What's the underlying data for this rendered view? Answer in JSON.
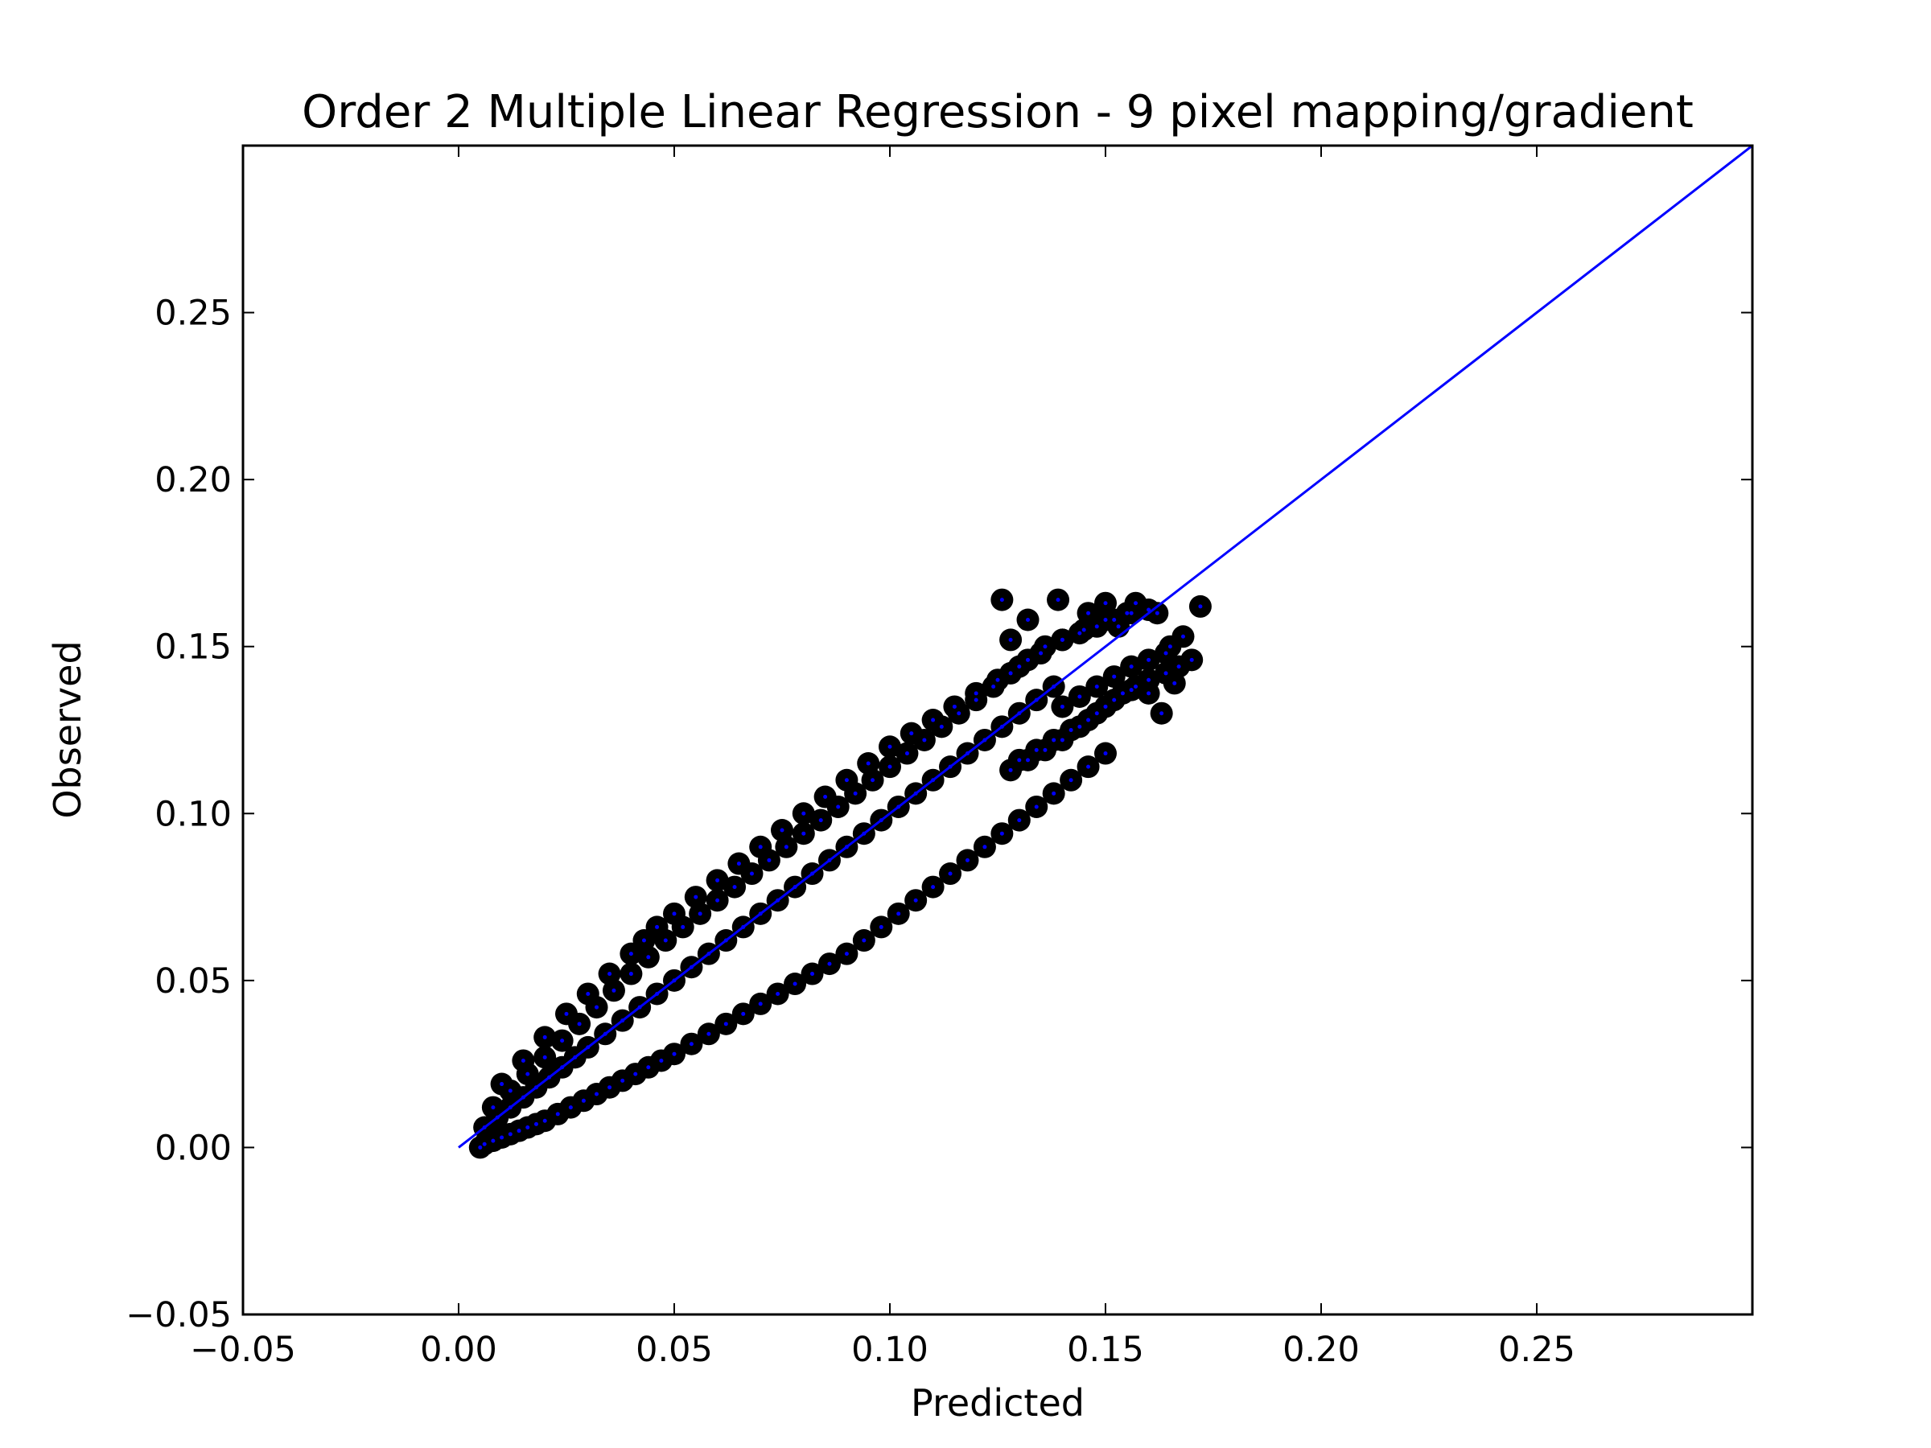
{
  "chart_data": {
    "type": "scatter",
    "title": "Order 2 Multiple Linear Regression - 9 pixel mapping/gradient",
    "xlabel": "Predicted",
    "ylabel": "Observed",
    "xlim": [
      -0.05,
      0.3
    ],
    "ylim": [
      -0.05,
      0.3
    ],
    "xticks": [
      -0.05,
      0.0,
      0.05,
      0.1,
      0.15,
      0.2,
      0.25
    ],
    "yticks": [
      -0.05,
      0.0,
      0.05,
      0.1,
      0.15,
      0.2,
      0.25
    ],
    "xtick_labels": [
      "−0.05",
      "0.00",
      "0.05",
      "0.10",
      "0.15",
      "0.20",
      "0.25"
    ],
    "ytick_labels": [
      "−0.05",
      "0.00",
      "0.05",
      "0.10",
      "0.15",
      "0.20",
      "0.25"
    ],
    "grid": false,
    "reference_line": {
      "x": [
        0,
        0.3
      ],
      "y": [
        0,
        0.3
      ],
      "color": "#0000ff"
    },
    "marker_color": "#000000",
    "inner_marker_color": "#0000ff",
    "series": [
      {
        "x": [
          0.005,
          0.006,
          0.008,
          0.01,
          0.012,
          0.014,
          0.016,
          0.018,
          0.02,
          0.023,
          0.026,
          0.029,
          0.032,
          0.035,
          0.038,
          0.041,
          0.044,
          0.047,
          0.05,
          0.054,
          0.058,
          0.062,
          0.066,
          0.07,
          0.074,
          0.078,
          0.082,
          0.086,
          0.09,
          0.094,
          0.098,
          0.102,
          0.106,
          0.11,
          0.114,
          0.118,
          0.122,
          0.126,
          0.13,
          0.134,
          0.138,
          0.142,
          0.146,
          0.15,
          0.006,
          0.009,
          0.012,
          0.015,
          0.018,
          0.021,
          0.024,
          0.027,
          0.03,
          0.034,
          0.038,
          0.042,
          0.046,
          0.05,
          0.054,
          0.058,
          0.062,
          0.066,
          0.07,
          0.074,
          0.078,
          0.082,
          0.086,
          0.09,
          0.094,
          0.098,
          0.102,
          0.106,
          0.11,
          0.114,
          0.118,
          0.122,
          0.126,
          0.13,
          0.134,
          0.138,
          0.008,
          0.012,
          0.016,
          0.02,
          0.024,
          0.028,
          0.032,
          0.036,
          0.04,
          0.044,
          0.048,
          0.052,
          0.056,
          0.06,
          0.064,
          0.068,
          0.072,
          0.076,
          0.08,
          0.084,
          0.088,
          0.092,
          0.096,
          0.1,
          0.104,
          0.108,
          0.112,
          0.116,
          0.12,
          0.124,
          0.128,
          0.132,
          0.136,
          0.14,
          0.144,
          0.148,
          0.152,
          0.156,
          0.16,
          0.01,
          0.015,
          0.02,
          0.025,
          0.03,
          0.035,
          0.04,
          0.043,
          0.046,
          0.05,
          0.055,
          0.06,
          0.065,
          0.07,
          0.075,
          0.08,
          0.085,
          0.09,
          0.095,
          0.1,
          0.105,
          0.11,
          0.115,
          0.12,
          0.125,
          0.13,
          0.135,
          0.14,
          0.145,
          0.15,
          0.155,
          0.126,
          0.128,
          0.132,
          0.139,
          0.146,
          0.15,
          0.153,
          0.157,
          0.162,
          0.165,
          0.168,
          0.17,
          0.172,
          0.166,
          0.163,
          0.16,
          0.156,
          0.152,
          0.148,
          0.144,
          0.14,
          0.136,
          0.132,
          0.128,
          0.167,
          0.164,
          0.16,
          0.157,
          0.154,
          0.15,
          0.146,
          0.142,
          0.138,
          0.134,
          0.13,
          0.164,
          0.16,
          0.156,
          0.152,
          0.148,
          0.144,
          0.14
        ],
        "y": [
          0.0,
          0.001,
          0.002,
          0.003,
          0.004,
          0.005,
          0.006,
          0.007,
          0.008,
          0.01,
          0.012,
          0.014,
          0.016,
          0.018,
          0.02,
          0.022,
          0.024,
          0.026,
          0.028,
          0.031,
          0.034,
          0.037,
          0.04,
          0.043,
          0.046,
          0.049,
          0.052,
          0.055,
          0.058,
          0.062,
          0.066,
          0.07,
          0.074,
          0.078,
          0.082,
          0.086,
          0.09,
          0.094,
          0.098,
          0.102,
          0.106,
          0.11,
          0.114,
          0.118,
          0.006,
          0.009,
          0.012,
          0.015,
          0.018,
          0.021,
          0.024,
          0.027,
          0.03,
          0.034,
          0.038,
          0.042,
          0.046,
          0.05,
          0.054,
          0.058,
          0.062,
          0.066,
          0.07,
          0.074,
          0.078,
          0.082,
          0.086,
          0.09,
          0.094,
          0.098,
          0.102,
          0.106,
          0.11,
          0.114,
          0.118,
          0.122,
          0.126,
          0.13,
          0.134,
          0.138,
          0.012,
          0.017,
          0.022,
          0.027,
          0.032,
          0.037,
          0.042,
          0.047,
          0.052,
          0.057,
          0.062,
          0.066,
          0.07,
          0.074,
          0.078,
          0.082,
          0.086,
          0.09,
          0.094,
          0.098,
          0.102,
          0.106,
          0.11,
          0.114,
          0.118,
          0.122,
          0.126,
          0.13,
          0.134,
          0.138,
          0.142,
          0.146,
          0.15,
          0.152,
          0.154,
          0.156,
          0.158,
          0.16,
          0.161,
          0.019,
          0.026,
          0.033,
          0.04,
          0.046,
          0.052,
          0.058,
          0.062,
          0.066,
          0.07,
          0.075,
          0.08,
          0.085,
          0.09,
          0.095,
          0.1,
          0.105,
          0.11,
          0.115,
          0.12,
          0.124,
          0.128,
          0.132,
          0.136,
          0.14,
          0.144,
          0.148,
          0.152,
          0.155,
          0.158,
          0.16,
          0.164,
          0.152,
          0.158,
          0.164,
          0.16,
          0.163,
          0.156,
          0.163,
          0.16,
          0.15,
          0.153,
          0.146,
          0.162,
          0.139,
          0.13,
          0.136,
          0.137,
          0.134,
          0.13,
          0.126,
          0.122,
          0.119,
          0.116,
          0.113,
          0.144,
          0.142,
          0.14,
          0.138,
          0.136,
          0.132,
          0.128,
          0.125,
          0.122,
          0.119,
          0.116,
          0.148,
          0.146,
          0.144,
          0.141,
          0.138,
          0.135,
          0.132
        ]
      }
    ]
  }
}
